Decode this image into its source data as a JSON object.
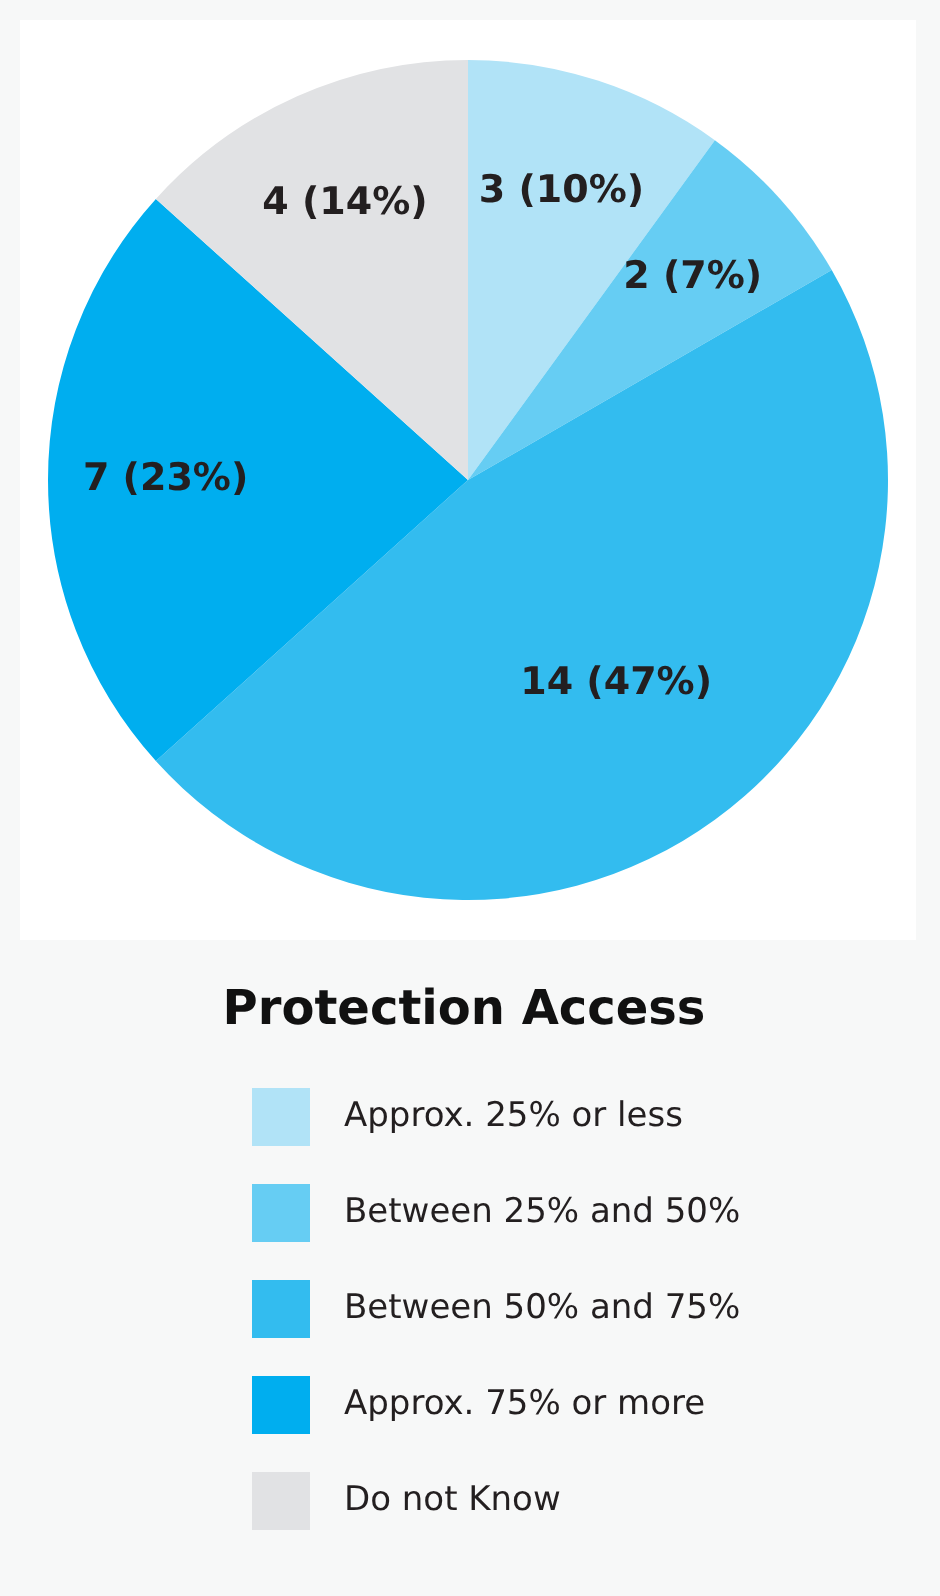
{
  "chart_data": {
    "type": "pie",
    "legend_title": "Protection Access",
    "categories": [
      "Approx. 25% or less",
      "Between 25% and 50%",
      "Between 50% and 75%",
      "Approx. 75% or more",
      "Do not Know"
    ],
    "values": [
      3,
      2,
      14,
      7,
      4
    ],
    "value_labels": [
      "3 (10%)",
      "2 (7%)",
      "14 (47%)",
      "7 (23%)",
      "4 (14%)"
    ],
    "colors": [
      "#b1e3f7",
      "#66cdf3",
      "#33bcef",
      "#00aeef",
      "#e1e2e4"
    ],
    "legend": "bottom"
  }
}
